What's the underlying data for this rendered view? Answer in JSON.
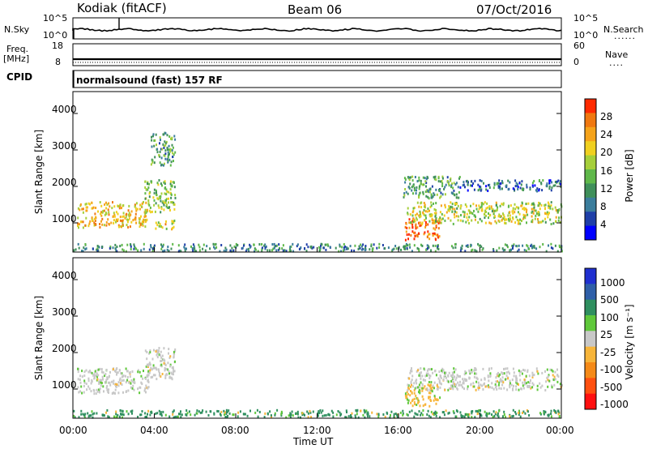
{
  "header": {
    "station": "Kodiak (fitACF)",
    "beam": "Beam 06",
    "date": "07/Oct/2016"
  },
  "top_panels": {
    "nsky_label": "N.Sky",
    "nsky_ticks": [
      "10^5",
      "10^0"
    ],
    "nsearch_label": "N.Search",
    "nsearch_ticks": [
      "10^5",
      "10^0"
    ],
    "freq_label": "Freq.",
    "freq_unit": "[MHz]",
    "freq_ticks": [
      "18",
      "8"
    ],
    "nave_label": "Nave",
    "nave_ticks": [
      "60",
      "0"
    ],
    "cpid_label": "CPID",
    "cpid_text": "normalsound (fast) 157 RF"
  },
  "chart_data": [
    {
      "type": "heatmap",
      "name": "power",
      "ylabel": "Slant Range [km]",
      "ylim": [
        200,
        4600
      ],
      "y_ticks": [
        "1000",
        "2000",
        "3000",
        "4000"
      ],
      "colorbar": {
        "label": "Power [dB]",
        "ticks": [
          "4",
          "8",
          "12",
          "16",
          "20",
          "24",
          "28"
        ],
        "colors": [
          "#0000ff",
          "#1f3fa8",
          "#3b7d9c",
          "#3f8f5a",
          "#5fb84a",
          "#a6cf3a",
          "#f0d020",
          "#f5a31a",
          "#f07810",
          "#ff2a00"
        ]
      },
      "echo_regions": [
        {
          "t_start": 0.2,
          "t_end": 3.7,
          "range_min": 900,
          "range_max": 1600,
          "power": 22
        },
        {
          "t_start": 3.5,
          "t_end": 5.0,
          "range_min": 1300,
          "range_max": 2200,
          "power": 16
        },
        {
          "t_start": 4.0,
          "t_end": 5.0,
          "range_min": 850,
          "range_max": 1100,
          "power": 20
        },
        {
          "t_start": 3.8,
          "t_end": 5.0,
          "range_min": 2600,
          "range_max": 3500,
          "power": 12
        },
        {
          "t_start": 16.3,
          "t_end": 18.0,
          "range_min": 550,
          "range_max": 1150,
          "power": 28
        },
        {
          "t_start": 16.4,
          "t_end": 24.0,
          "range_min": 1000,
          "range_max": 1600,
          "power": 18
        },
        {
          "t_start": 16.2,
          "t_end": 19.0,
          "range_min": 1700,
          "range_max": 2300,
          "power": 12
        },
        {
          "t_start": 19.0,
          "t_end": 24.0,
          "range_min": 1900,
          "range_max": 2200,
          "power": 8
        },
        {
          "t_start": 0.0,
          "t_end": 24.0,
          "range_min": 250,
          "range_max": 450,
          "power": 10
        }
      ]
    },
    {
      "type": "heatmap",
      "name": "velocity",
      "ylabel": "Slant Range [km]",
      "ylim": [
        200,
        4600
      ],
      "y_ticks": [
        "1000",
        "2000",
        "3000",
        "4000"
      ],
      "colorbar": {
        "label": "Velocity [m s⁻¹]",
        "ticks": [
          "1000",
          "500",
          "100",
          "25",
          "-25",
          "-100",
          "-500",
          "-1000"
        ],
        "colors": [
          "#2030d0",
          "#2f5fa8",
          "#2f8f5f",
          "#5fc83a",
          "#c8c8c8",
          "#f7b53a",
          "#f58a18",
          "#ff5010",
          "#ff1010"
        ]
      },
      "echo_regions": [
        {
          "t_start": 0.2,
          "t_end": 3.7,
          "range_min": 900,
          "range_max": 1600,
          "velocity": 0
        },
        {
          "t_start": 3.5,
          "t_end": 5.0,
          "range_min": 1300,
          "range_max": 2200,
          "velocity": 0
        },
        {
          "t_start": 16.3,
          "t_end": 18.0,
          "range_min": 550,
          "range_max": 1150,
          "velocity": -100
        },
        {
          "t_start": 16.4,
          "t_end": 24.0,
          "range_min": 1000,
          "range_max": 1600,
          "velocity": 0
        },
        {
          "t_start": 0.0,
          "t_end": 24.0,
          "range_min": 250,
          "range_max": 450,
          "velocity": 100
        }
      ]
    }
  ],
  "x_axis": {
    "label": "Time UT",
    "ticks": [
      "00:00",
      "04:00",
      "08:00",
      "12:00",
      "16:00",
      "20:00",
      "00:00"
    ],
    "xlim": [
      0,
      24
    ]
  }
}
